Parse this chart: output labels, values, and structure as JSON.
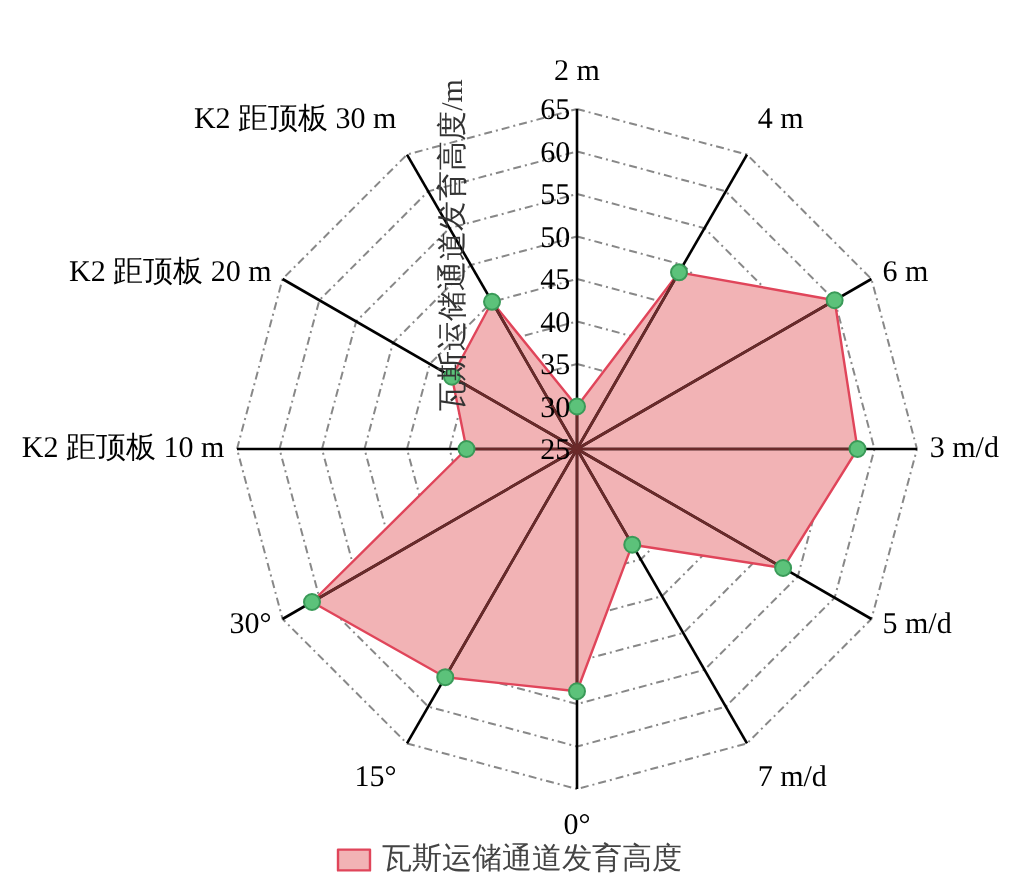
{
  "chart_data": {
    "type": "radar",
    "ylabel": "瓦斯运储通道发育高度/m",
    "categories": [
      "2 m",
      "4 m",
      "6 m",
      "3 m/d",
      "5 m/d",
      "7 m/d",
      "0°",
      "15°",
      "30°",
      "K2 距顶板 10 m",
      "K2 距顶板 20 m",
      "K2 距顶板 30 m"
    ],
    "series": [
      {
        "name": "瓦斯运储通道发育高度",
        "color": "#f2b3b5",
        "values": [
          30,
          49,
          60,
          58,
          53,
          38,
          53.5,
          56,
          61,
          38,
          42,
          45
        ]
      }
    ],
    "ylim": [
      25,
      65
    ],
    "yticks": [
      25,
      30,
      35,
      40,
      45,
      50,
      55,
      60,
      65
    ],
    "grid": true,
    "legend": "bottom",
    "marker": "circle"
  }
}
